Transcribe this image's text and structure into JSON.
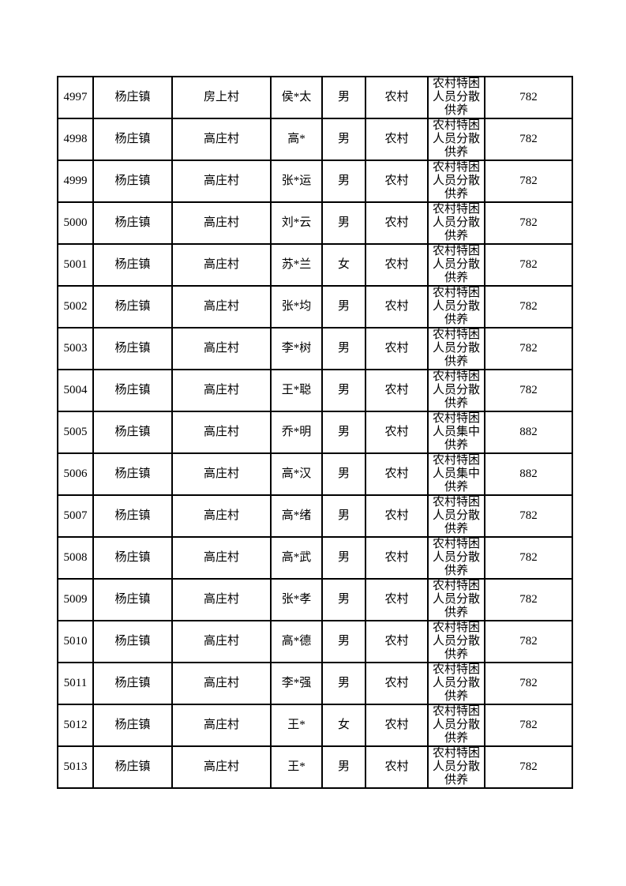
{
  "page": {
    "background_color": "#ffffff",
    "text_color": "#000000",
    "border_color": "#000000"
  },
  "table": {
    "columns": [
      {
        "key": "serial"
      },
      {
        "key": "town"
      },
      {
        "key": "village"
      },
      {
        "key": "name"
      },
      {
        "key": "gender"
      },
      {
        "key": "domicile"
      },
      {
        "key": "category"
      },
      {
        "key": "amount"
      }
    ],
    "rows": [
      {
        "serial": "4997",
        "town": "杨庄镇",
        "village": "房上村",
        "name": "侯*太",
        "gender": "男",
        "domicile": "农村",
        "category": "农村特困人员分散供养",
        "amount": "782"
      },
      {
        "serial": "4998",
        "town": "杨庄镇",
        "village": "高庄村",
        "name": "高*",
        "gender": "男",
        "domicile": "农村",
        "category": "农村特困人员分散供养",
        "amount": "782"
      },
      {
        "serial": "4999",
        "town": "杨庄镇",
        "village": "高庄村",
        "name": "张*运",
        "gender": "男",
        "domicile": "农村",
        "category": "农村特困人员分散供养",
        "amount": "782"
      },
      {
        "serial": "5000",
        "town": "杨庄镇",
        "village": "高庄村",
        "name": "刘*云",
        "gender": "男",
        "domicile": "农村",
        "category": "农村特困人员分散供养",
        "amount": "782"
      },
      {
        "serial": "5001",
        "town": "杨庄镇",
        "village": "高庄村",
        "name": "苏*兰",
        "gender": "女",
        "domicile": "农村",
        "category": "农村特困人员分散供养",
        "amount": "782"
      },
      {
        "serial": "5002",
        "town": "杨庄镇",
        "village": "高庄村",
        "name": "张*均",
        "gender": "男",
        "domicile": "农村",
        "category": "农村特困人员分散供养",
        "amount": "782"
      },
      {
        "serial": "5003",
        "town": "杨庄镇",
        "village": "高庄村",
        "name": "李*树",
        "gender": "男",
        "domicile": "农村",
        "category": "农村特困人员分散供养",
        "amount": "782"
      },
      {
        "serial": "5004",
        "town": "杨庄镇",
        "village": "高庄村",
        "name": "王*聪",
        "gender": "男",
        "domicile": "农村",
        "category": "农村特困人员分散供养",
        "amount": "782"
      },
      {
        "serial": "5005",
        "town": "杨庄镇",
        "village": "高庄村",
        "name": "乔*明",
        "gender": "男",
        "domicile": "农村",
        "category": "农村特困人员集中供养",
        "amount": "882"
      },
      {
        "serial": "5006",
        "town": "杨庄镇",
        "village": "高庄村",
        "name": "高*汉",
        "gender": "男",
        "domicile": "农村",
        "category": "农村特困人员集中供养",
        "amount": "882"
      },
      {
        "serial": "5007",
        "town": "杨庄镇",
        "village": "高庄村",
        "name": "高*绪",
        "gender": "男",
        "domicile": "农村",
        "category": "农村特困人员分散供养",
        "amount": "782"
      },
      {
        "serial": "5008",
        "town": "杨庄镇",
        "village": "高庄村",
        "name": "高*武",
        "gender": "男",
        "domicile": "农村",
        "category": "农村特困人员分散供养",
        "amount": "782"
      },
      {
        "serial": "5009",
        "town": "杨庄镇",
        "village": "高庄村",
        "name": "张*孝",
        "gender": "男",
        "domicile": "农村",
        "category": "农村特困人员分散供养",
        "amount": "782"
      },
      {
        "serial": "5010",
        "town": "杨庄镇",
        "village": "高庄村",
        "name": "高*德",
        "gender": "男",
        "domicile": "农村",
        "category": "农村特困人员分散供养",
        "amount": "782"
      },
      {
        "serial": "5011",
        "town": "杨庄镇",
        "village": "高庄村",
        "name": "李*强",
        "gender": "男",
        "domicile": "农村",
        "category": "农村特困人员分散供养",
        "amount": "782"
      },
      {
        "serial": "5012",
        "town": "杨庄镇",
        "village": "高庄村",
        "name": "王*",
        "gender": "女",
        "domicile": "农村",
        "category": "农村特困人员分散供养",
        "amount": "782"
      },
      {
        "serial": "5013",
        "town": "杨庄镇",
        "village": "高庄村",
        "name": "王*",
        "gender": "男",
        "domicile": "农村",
        "category": "农村特困人员分散供养",
        "amount": "782"
      }
    ]
  }
}
